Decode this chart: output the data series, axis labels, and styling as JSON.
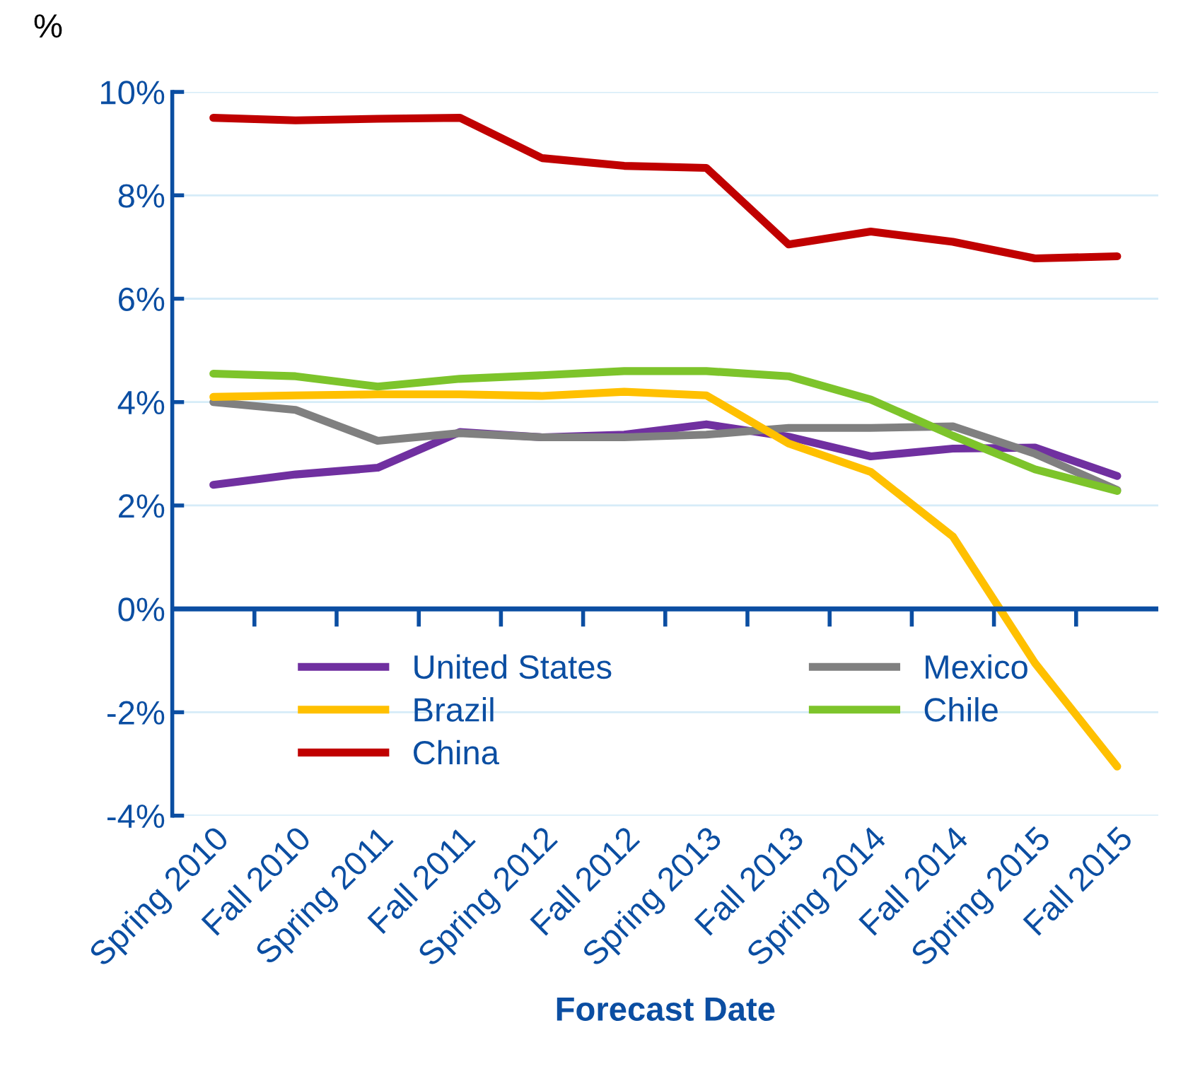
{
  "chart_data": {
    "type": "line",
    "ylabel": "%",
    "xlabel": "Forecast Date",
    "categories": [
      "Spring 2010",
      "Fall 2010",
      "Spring 2011",
      "Fall 2011",
      "Spring 2012",
      "Fall 2012",
      "Spring 2013",
      "Fall 2013",
      "Spring 2014",
      "Fall 2014",
      "Spring 2015",
      "Fall 2015"
    ],
    "series": [
      {
        "name": "United States",
        "color": "#7030a0",
        "values": [
          2.4,
          2.6,
          2.73,
          3.42,
          3.32,
          3.37,
          3.57,
          3.33,
          2.95,
          3.1,
          3.12,
          2.57
        ]
      },
      {
        "name": "Mexico",
        "color": "#808080",
        "values": [
          4.0,
          3.85,
          3.25,
          3.4,
          3.32,
          3.32,
          3.37,
          3.5,
          3.5,
          3.53,
          3.0,
          2.3
        ]
      },
      {
        "name": "Brazil",
        "color": "#ffc000",
        "values": [
          4.1,
          4.13,
          4.15,
          4.15,
          4.12,
          4.2,
          4.13,
          3.2,
          2.65,
          1.4,
          -1.05,
          -3.05
        ]
      },
      {
        "name": "Chile",
        "color": "#7dc42b",
        "values": [
          4.55,
          4.5,
          4.3,
          4.45,
          4.52,
          4.6,
          4.6,
          4.5,
          4.05,
          3.35,
          2.7,
          2.28
        ]
      },
      {
        "name": "China",
        "color": "#c00000",
        "values": [
          9.5,
          9.45,
          9.48,
          9.5,
          8.72,
          8.57,
          8.53,
          7.05,
          7.3,
          7.1,
          6.78,
          6.82
        ]
      }
    ],
    "ylim": [
      -4,
      10
    ],
    "yticks": [
      {
        "value": -4,
        "label": "-4%"
      },
      {
        "value": -2,
        "label": "-2%"
      },
      {
        "value": 0,
        "label": "0%"
      },
      {
        "value": 2,
        "label": "2%"
      },
      {
        "value": 4,
        "label": "4%"
      },
      {
        "value": 6,
        "label": "6%"
      },
      {
        "value": 8,
        "label": "8%"
      },
      {
        "value": 10,
        "label": "10%"
      }
    ],
    "ref_lines": [
      {
        "axis": "y",
        "value": 0,
        "color": "#0b4ea2"
      }
    ],
    "grid": "y",
    "legend": "bottom",
    "marker": "none",
    "line_style": "solid"
  }
}
